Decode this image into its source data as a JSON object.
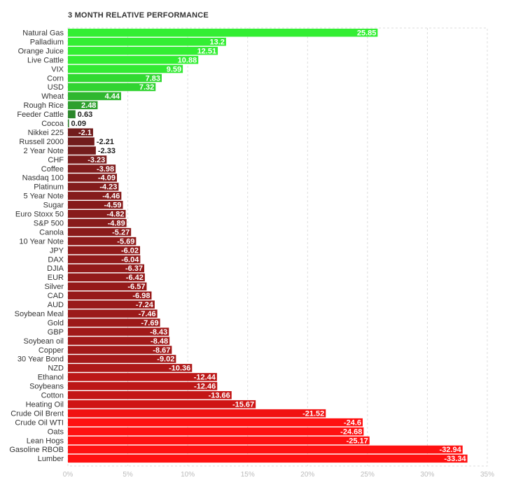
{
  "chart_data": {
    "type": "bar",
    "orientation": "horizontal",
    "title": "3 MONTH RELATIVE PERFORMANCE",
    "xlabel": "",
    "ylabel": "",
    "categories": [
      "Natural Gas",
      "Palladium",
      "Orange Juice",
      "Live Cattle",
      "VIX",
      "Corn",
      "USD",
      "Wheat",
      "Rough Rice",
      "Feeder Cattle",
      "Cocoa",
      "Nikkei 225",
      "Russell 2000",
      "2 Year Note",
      "CHF",
      "Coffee",
      "Nasdaq 100",
      "Platinum",
      "5 Year Note",
      "Sugar",
      "Euro Stoxx 50",
      "S&P 500",
      "Canola",
      "10 Year Note",
      "JPY",
      "DAX",
      "DJIA",
      "EUR",
      "Silver",
      "CAD",
      "AUD",
      "Soybean Meal",
      "Gold",
      "GBP",
      "Soybean oil",
      "Copper",
      "30 Year Bond",
      "NZD",
      "Ethanol",
      "Soybeans",
      "Cotton",
      "Heating Oil",
      "Crude Oil Brent",
      "Crude Oil WTI",
      "Oats",
      "Lean Hogs",
      "Gasoline RBOB",
      "Lumber"
    ],
    "values": [
      25.85,
      13.2,
      12.51,
      10.88,
      9.59,
      7.83,
      7.32,
      4.44,
      2.48,
      0.63,
      0.09,
      -2.1,
      -2.21,
      -2.33,
      -3.23,
      -3.98,
      -4.09,
      -4.23,
      -4.46,
      -4.59,
      -4.82,
      -4.89,
      -5.27,
      -5.69,
      -6.02,
      -6.04,
      -6.37,
      -6.42,
      -6.57,
      -6.98,
      -7.24,
      -7.46,
      -7.69,
      -8.43,
      -8.48,
      -8.67,
      -9.02,
      -10.36,
      -12.44,
      -12.46,
      -13.66,
      -15.67,
      -21.52,
      -24.6,
      -24.68,
      -25.17,
      -32.94,
      -33.34
    ],
    "value_labels": [
      "25.85",
      "13.2",
      "12.51",
      "10.88",
      "9.59",
      "7.83",
      "7.32",
      "4.44",
      "2.48",
      "0.63",
      "0.09",
      "-2.1",
      "-2.21",
      "-2.33",
      "-3.23",
      "-3.98",
      "-4.09",
      "-4.23",
      "-4.46",
      "-4.59",
      "-4.82",
      "-4.89",
      "-5.27",
      "-5.69",
      "-6.02",
      "-6.04",
      "-6.37",
      "-6.42",
      "-6.57",
      "-6.98",
      "-7.24",
      "-7.46",
      "-7.69",
      "-8.43",
      "-8.48",
      "-8.67",
      "-9.02",
      "-10.36",
      "-12.44",
      "-12.46",
      "-13.66",
      "-15.67",
      "-21.52",
      "-24.6",
      "-24.68",
      "-25.17",
      "-32.94",
      "-33.34"
    ],
    "xlim": [
      0,
      35
    ],
    "x_ticks": [
      0,
      5,
      10,
      15,
      20,
      25,
      30,
      35
    ],
    "x_tick_labels": [
      "0%",
      "5%",
      "10%",
      "15%",
      "20%",
      "25%",
      "30%",
      "35%"
    ],
    "bar_length": "absolute value",
    "grid": true,
    "grid_style": "dashed vertical",
    "legend": "none",
    "colors": {
      "positive_strong": "#33ee33",
      "positive_weak": "#2a7a2a",
      "negative_weak": "#5a1f1f",
      "negative_strong": "#ff1111",
      "label_on_bar": "#ffffff",
      "label_off_bar": "#222222",
      "grid": "#dddddd",
      "tick_text": "#bbbbbb"
    }
  }
}
